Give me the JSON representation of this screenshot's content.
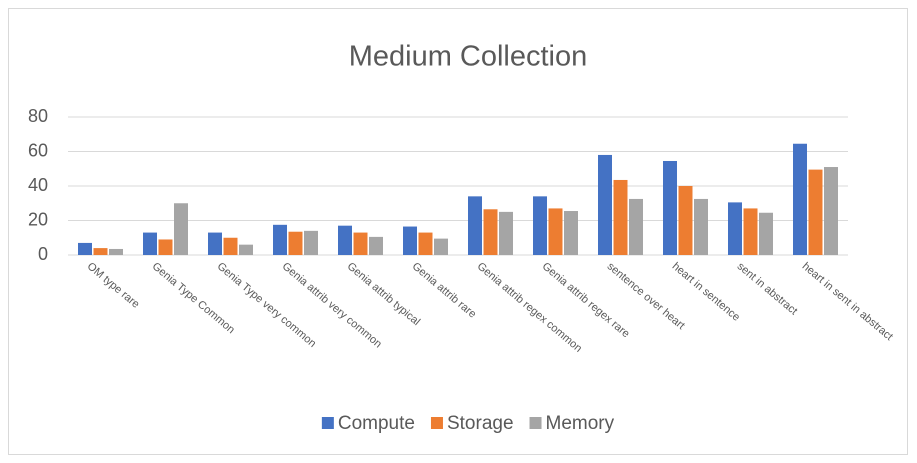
{
  "chart_data": {
    "type": "bar",
    "title": "Medium Collection",
    "categories": [
      "OM type rare",
      "Genia Type Common",
      "Genia Type very common",
      "Genia attrib very common",
      "Genia attrib typical",
      "Genia attrib rare",
      "Genia attrib regex common",
      "Genia attrib regex rare",
      "sentence over heart",
      "heart in sentence",
      "sent in abstract",
      "heart in sent in abstract"
    ],
    "series": [
      {
        "name": "Compute",
        "color": "#4472c4",
        "values": [
          7,
          13,
          13,
          17.5,
          17,
          16.5,
          34,
          34,
          58,
          54.5,
          30.5,
          64.5
        ]
      },
      {
        "name": "Storage",
        "color": "#ed7d31",
        "values": [
          4,
          9,
          10,
          13.5,
          13,
          13,
          26.5,
          27,
          43.5,
          40,
          27,
          49.5
        ]
      },
      {
        "name": "Memory",
        "color": "#a5a5a5",
        "values": [
          3.5,
          30,
          6,
          14,
          10.5,
          9.5,
          25,
          25.5,
          32.5,
          32.5,
          24.5,
          51
        ]
      }
    ],
    "ylim": [
      0,
      80
    ],
    "yticks": [
      0,
      20,
      40,
      60,
      80
    ],
    "grid": true,
    "legend": "bottom"
  }
}
